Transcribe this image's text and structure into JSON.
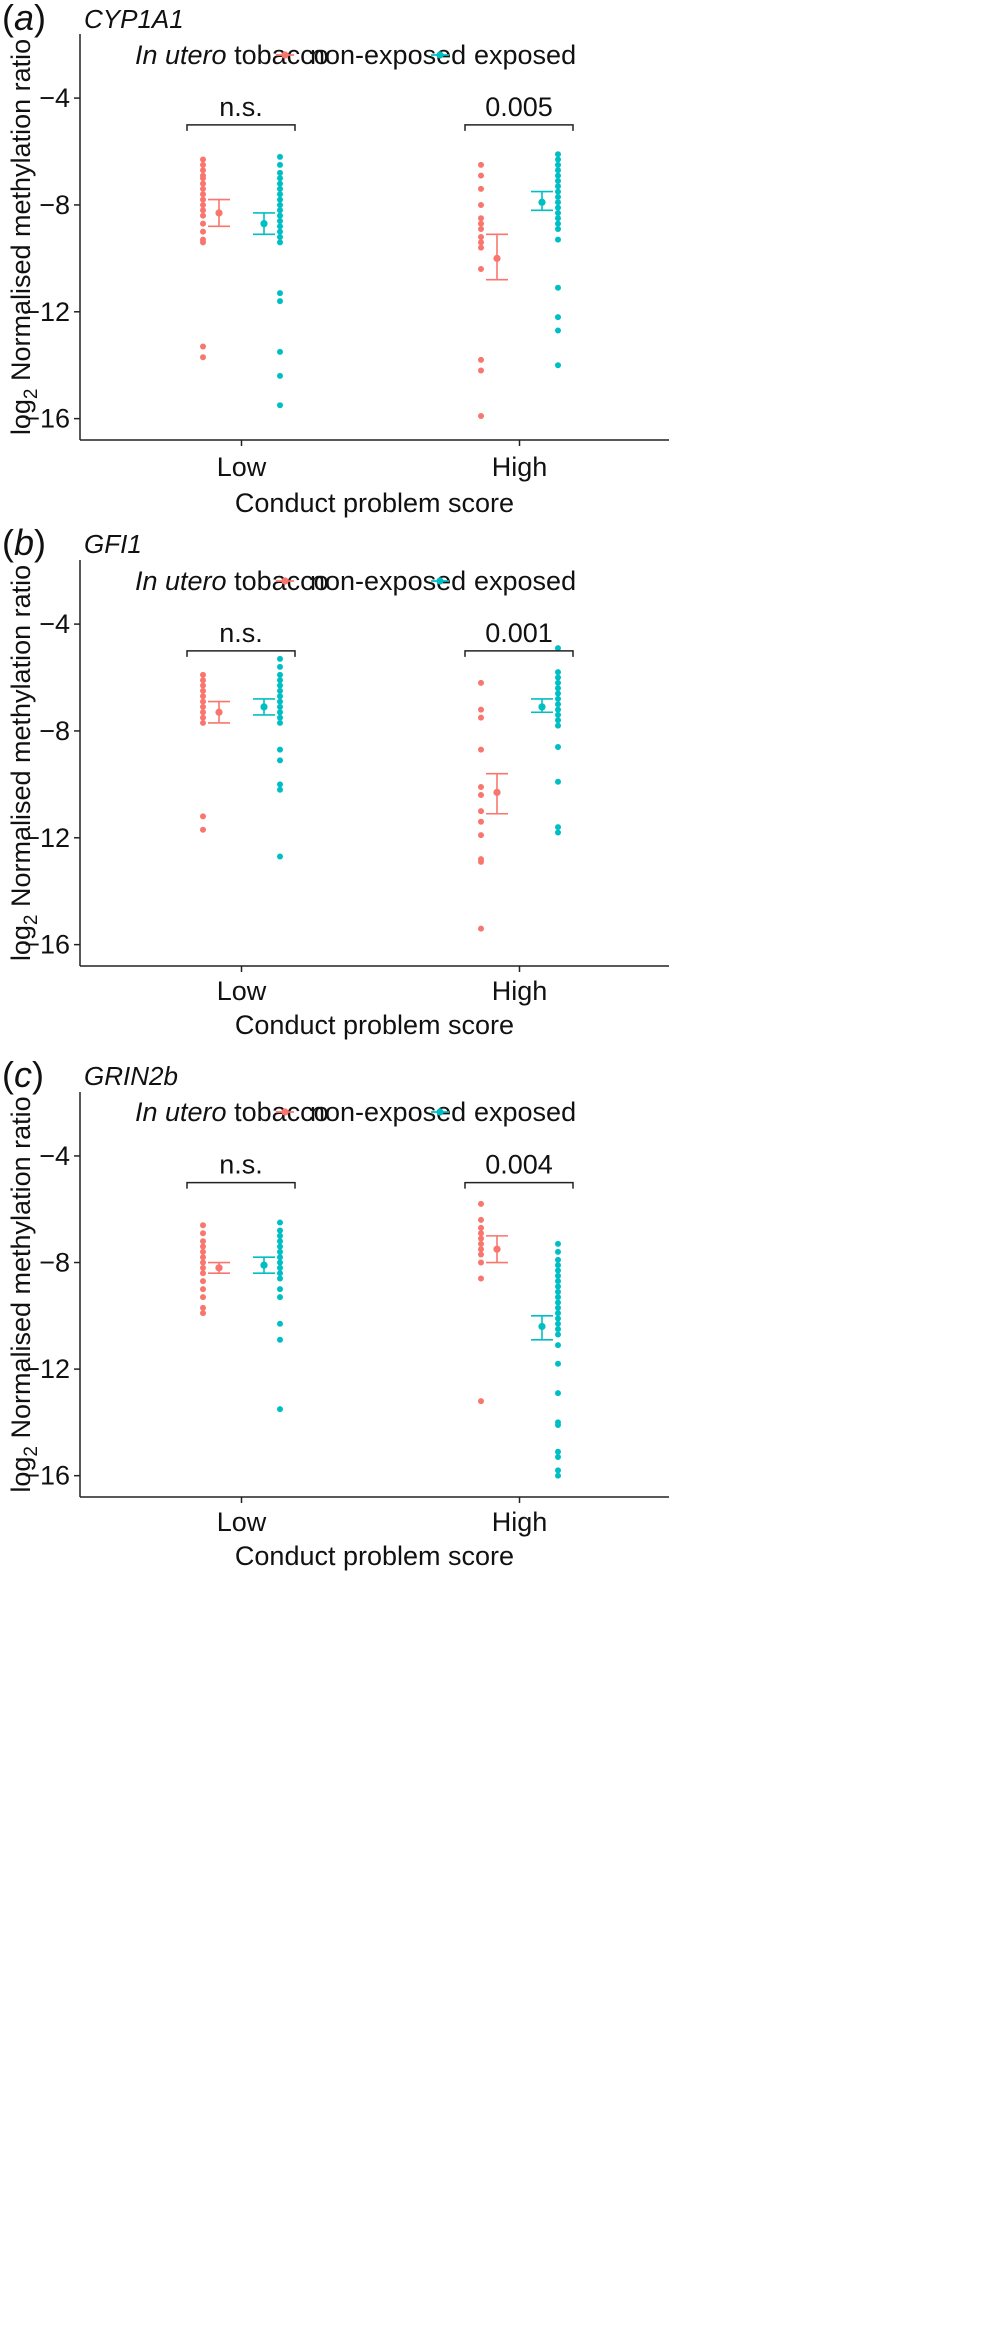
{
  "chart_data": [
    {
      "type": "scatter",
      "panel_label": {
        "open": "(",
        "letter": "a",
        "close": ")"
      },
      "gene": "CYP1A1",
      "ylabel": {
        "prefix": "log",
        "sub": "2",
        "rest": " Normalised methylation ratio"
      },
      "xlabel": "Conduct problem score",
      "legend": {
        "title_italic": "In utero",
        "title_rest": " tobacco",
        "items": [
          "non-exposed",
          "exposed"
        ],
        "placement": "top"
      },
      "categories": [
        "Low",
        "High"
      ],
      "ylim": [
        -16.8,
        -1.6
      ],
      "yticks": [
        -4,
        -8,
        -12,
        -16
      ],
      "ytick_labels": [
        "−4",
        "−8",
        "−12",
        "−16"
      ],
      "series": [
        {
          "name": "non-exposed",
          "color": "#F8766D",
          "groups": [
            {
              "category": "Low",
              "points": [
                -6.3,
                -6.5,
                -6.7,
                -6.9,
                -7.0,
                -7.2,
                -7.4,
                -7.6,
                -7.8,
                -8.0,
                -8.2,
                -8.4,
                -8.7,
                -9.0,
                -9.3,
                -9.4,
                -13.3,
                -13.7
              ],
              "mean": -8.3,
              "ci": [
                -8.8,
                -7.8
              ]
            },
            {
              "category": "High",
              "points": [
                -6.5,
                -6.9,
                -7.4,
                -8.0,
                -8.5,
                -8.7,
                -8.9,
                -9.2,
                -9.4,
                -9.6,
                -10.4,
                -13.8,
                -14.2,
                -15.9
              ],
              "mean": -10.0,
              "ci": [
                -10.8,
                -9.1
              ]
            }
          ]
        },
        {
          "name": "exposed",
          "color": "#00BFC4",
          "groups": [
            {
              "category": "Low",
              "points": [
                -6.2,
                -6.5,
                -6.8,
                -7.0,
                -7.2,
                -7.4,
                -7.6,
                -7.8,
                -8.0,
                -8.2,
                -8.4,
                -8.6,
                -8.8,
                -9.0,
                -9.2,
                -9.4,
                -11.3,
                -11.6,
                -13.5,
                -14.4,
                -15.5
              ],
              "mean": -8.7,
              "ci": [
                -9.1,
                -8.3
              ]
            },
            {
              "category": "High",
              "points": [
                -6.1,
                -6.3,
                -6.5,
                -6.7,
                -6.9,
                -7.1,
                -7.3,
                -7.5,
                -7.7,
                -7.9,
                -8.1,
                -8.3,
                -8.5,
                -8.7,
                -8.9,
                -9.3,
                -11.1,
                -12.2,
                -12.7,
                -14.0
              ],
              "mean": -7.9,
              "ci": [
                -8.2,
                -7.5
              ]
            }
          ]
        }
      ],
      "annotations": [
        {
          "category": "Low",
          "label": "n.s.",
          "y": -5.0
        },
        {
          "category": "High",
          "label": "0.005",
          "y": -5.0
        }
      ],
      "grid": false
    },
    {
      "type": "scatter",
      "panel_label": {
        "open": "(",
        "letter": "b",
        "close": ")"
      },
      "gene": "GFI1",
      "ylabel": {
        "prefix": "log",
        "sub": "2",
        "rest": " Normalised methylation ratio"
      },
      "xlabel": "Conduct problem score",
      "legend": {
        "title_italic": "In utero",
        "title_rest": " tobacco",
        "items": [
          "non-exposed",
          "exposed"
        ],
        "placement": "top"
      },
      "categories": [
        "Low",
        "High"
      ],
      "ylim": [
        -16.8,
        -1.6
      ],
      "yticks": [
        -4,
        -8,
        -12,
        -16
      ],
      "ytick_labels": [
        "−4",
        "−8",
        "−12",
        "−16"
      ],
      "series": [
        {
          "name": "non-exposed",
          "color": "#F8766D",
          "groups": [
            {
              "category": "Low",
              "points": [
                -5.9,
                -6.1,
                -6.3,
                -6.5,
                -6.7,
                -6.9,
                -7.1,
                -7.3,
                -7.5,
                -7.7,
                -11.2,
                -11.7
              ],
              "mean": -7.3,
              "ci": [
                -7.7,
                -6.9
              ]
            },
            {
              "category": "High",
              "points": [
                -6.2,
                -7.2,
                -7.5,
                -8.7,
                -10.1,
                -10.4,
                -11.0,
                -11.4,
                -11.9,
                -12.8,
                -12.9,
                -15.4
              ],
              "mean": -10.3,
              "ci": [
                -11.1,
                -9.6
              ]
            }
          ]
        },
        {
          "name": "exposed",
          "color": "#00BFC4",
          "groups": [
            {
              "category": "Low",
              "points": [
                -5.3,
                -5.6,
                -5.9,
                -6.1,
                -6.3,
                -6.5,
                -6.7,
                -6.9,
                -7.1,
                -7.3,
                -7.5,
                -7.7,
                -8.7,
                -9.1,
                -10.0,
                -10.2,
                -12.7
              ],
              "mean": -7.1,
              "ci": [
                -7.4,
                -6.8
              ]
            },
            {
              "category": "High",
              "points": [
                -4.9,
                -5.8,
                -6.0,
                -6.2,
                -6.4,
                -6.6,
                -6.8,
                -7.0,
                -7.2,
                -7.4,
                -7.6,
                -7.8,
                -8.6,
                -9.9,
                -11.6,
                -11.8
              ],
              "mean": -7.1,
              "ci": [
                -7.3,
                -6.8
              ]
            }
          ]
        }
      ],
      "annotations": [
        {
          "category": "Low",
          "label": "n.s.",
          "y": -5.0
        },
        {
          "category": "High",
          "label": "0.001",
          "y": -5.0
        }
      ],
      "grid": false
    },
    {
      "type": "scatter",
      "panel_label": {
        "open": "(",
        "letter": "c",
        "close": ")"
      },
      "gene": "GRIN2b",
      "ylabel": {
        "prefix": "log",
        "sub": "2",
        "rest": " Normalised methylation ratio"
      },
      "xlabel": "Conduct problem score",
      "legend": {
        "title_italic": "In utero",
        "title_rest": " tobacco",
        "items": [
          "non-exposed",
          "exposed"
        ],
        "placement": "top"
      },
      "categories": [
        "Low",
        "High"
      ],
      "ylim": [
        -16.8,
        -1.6
      ],
      "yticks": [
        -4,
        -8,
        -12,
        -16
      ],
      "ytick_labels": [
        "−4",
        "−8",
        "−12",
        "−16"
      ],
      "series": [
        {
          "name": "non-exposed",
          "color": "#F8766D",
          "groups": [
            {
              "category": "Low",
              "points": [
                -6.6,
                -6.9,
                -7.2,
                -7.4,
                -7.6,
                -7.8,
                -8.0,
                -8.2,
                -8.4,
                -8.7,
                -9.0,
                -9.3,
                -9.7,
                -9.9
              ],
              "mean": -8.2,
              "ci": [
                -8.4,
                -8.0
              ]
            },
            {
              "category": "High",
              "points": [
                -5.8,
                -6.4,
                -6.7,
                -6.9,
                -7.1,
                -7.3,
                -7.5,
                -7.7,
                -8.0,
                -8.6,
                -13.2
              ],
              "mean": -7.5,
              "ci": [
                -8.0,
                -7.0
              ]
            }
          ]
        },
        {
          "name": "exposed",
          "color": "#00BFC4",
          "groups": [
            {
              "category": "Low",
              "points": [
                -6.5,
                -6.8,
                -7.0,
                -7.2,
                -7.4,
                -7.6,
                -7.8,
                -8.0,
                -8.2,
                -8.4,
                -8.6,
                -9.0,
                -9.3,
                -10.3,
                -10.9,
                -13.5
              ],
              "mean": -8.1,
              "ci": [
                -8.4,
                -7.8
              ]
            },
            {
              "category": "High",
              "points": [
                -7.3,
                -7.6,
                -7.9,
                -8.1,
                -8.3,
                -8.5,
                -8.7,
                -8.9,
                -9.1,
                -9.3,
                -9.5,
                -9.7,
                -9.9,
                -10.1,
                -10.3,
                -10.5,
                -10.7,
                -11.1,
                -11.8,
                -12.9,
                -14.0,
                -14.1,
                -15.1,
                -15.3,
                -15.8,
                -16.0
              ],
              "mean": -10.4,
              "ci": [
                -10.9,
                -10.0
              ]
            }
          ]
        }
      ],
      "annotations": [
        {
          "category": "Low",
          "label": "n.s.",
          "y": -5.0
        },
        {
          "category": "High",
          "label": "0.004",
          "y": -5.0
        }
      ],
      "grid": false
    }
  ]
}
